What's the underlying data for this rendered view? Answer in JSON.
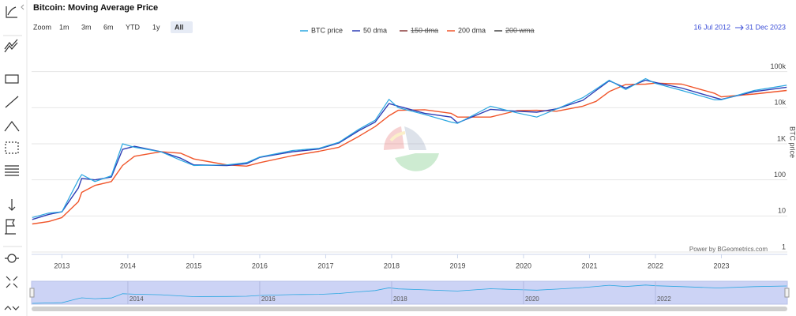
{
  "chart_data": {
    "type": "line",
    "title": "Bitcoin: Moving Average Price",
    "zoom_label": "Zoom",
    "zoom_buttons": [
      "1m",
      "3m",
      "6m",
      "YTD",
      "1y",
      "All"
    ],
    "zoom_selected": "All",
    "range_from": "16 Jul 2012",
    "range_to": "31 Dec 2023",
    "y_label": "BTC price",
    "credit": "Power by BGeometrics.com",
    "log_scale": true,
    "grid": true,
    "legend_position": "top",
    "xlim": [
      2012.54,
      2024.0
    ],
    "xticks": [
      2013,
      2014,
      2015,
      2016,
      2017,
      2018,
      2019,
      2020,
      2021,
      2022,
      2023
    ],
    "navigator_xticks": [
      2014,
      2016,
      2018,
      2020,
      2022
    ],
    "ylim": [
      1,
      1000000
    ],
    "yticks": [
      1,
      10,
      100,
      {
        "value": 1000,
        "label": "1K"
      },
      {
        "value": 10000,
        "label": "10k"
      },
      {
        "value": 100000,
        "label": "100k"
      }
    ],
    "x": [
      2012.55,
      2012.8,
      2013.0,
      2013.25,
      2013.3,
      2013.5,
      2013.75,
      2013.92,
      2014.1,
      2014.5,
      2014.8,
      2015.0,
      2015.5,
      2015.8,
      2016.0,
      2016.5,
      2016.9,
      2017.2,
      2017.5,
      2017.75,
      2017.96,
      2018.1,
      2018.5,
      2018.9,
      2019.0,
      2019.5,
      2019.9,
      2020.2,
      2020.5,
      2020.9,
      2021.1,
      2021.3,
      2021.55,
      2021.85,
      2022.0,
      2022.4,
      2022.9,
      2023.0,
      2023.5,
      2023.99
    ],
    "series": [
      {
        "name": "BTC price",
        "color": "#2aa7e1",
        "values": [
          9,
          12,
          13,
          100,
          140,
          90,
          130,
          1000,
          800,
          600,
          350,
          250,
          260,
          300,
          430,
          650,
          750,
          1100,
          2500,
          4500,
          17000,
          10000,
          6500,
          4000,
          3700,
          11000,
          7200,
          5500,
          9200,
          19000,
          33000,
          58000,
          32000,
          64000,
          47000,
          30000,
          16500,
          16600,
          30000,
          42000
        ]
      },
      {
        "name": "50 dma",
        "color": "#2d3db5",
        "values": [
          8,
          11,
          13,
          60,
          110,
          100,
          120,
          700,
          850,
          600,
          400,
          260,
          250,
          280,
          420,
          600,
          720,
          1050,
          2300,
          4000,
          13000,
          11000,
          7000,
          5500,
          3800,
          9000,
          8000,
          7500,
          9300,
          16000,
          30000,
          56000,
          35000,
          58000,
          50000,
          35000,
          19000,
          17000,
          28000,
          37000
        ]
      },
      {
        "name": "150 dma",
        "color": "#8b3a3a",
        "hidden": true
      },
      {
        "name": "200 dma",
        "color": "#f0552a",
        "values": [
          6,
          7,
          9,
          25,
          45,
          70,
          90,
          250,
          450,
          600,
          550,
          380,
          260,
          240,
          300,
          470,
          620,
          800,
          1600,
          3000,
          6000,
          8500,
          8800,
          7000,
          5500,
          5500,
          8300,
          8500,
          8000,
          11000,
          15000,
          28000,
          44000,
          45000,
          48000,
          45000,
          25000,
          20000,
          24000,
          30000
        ]
      },
      {
        "name": "200 wma",
        "color": "#444444",
        "hidden": true
      }
    ]
  }
}
